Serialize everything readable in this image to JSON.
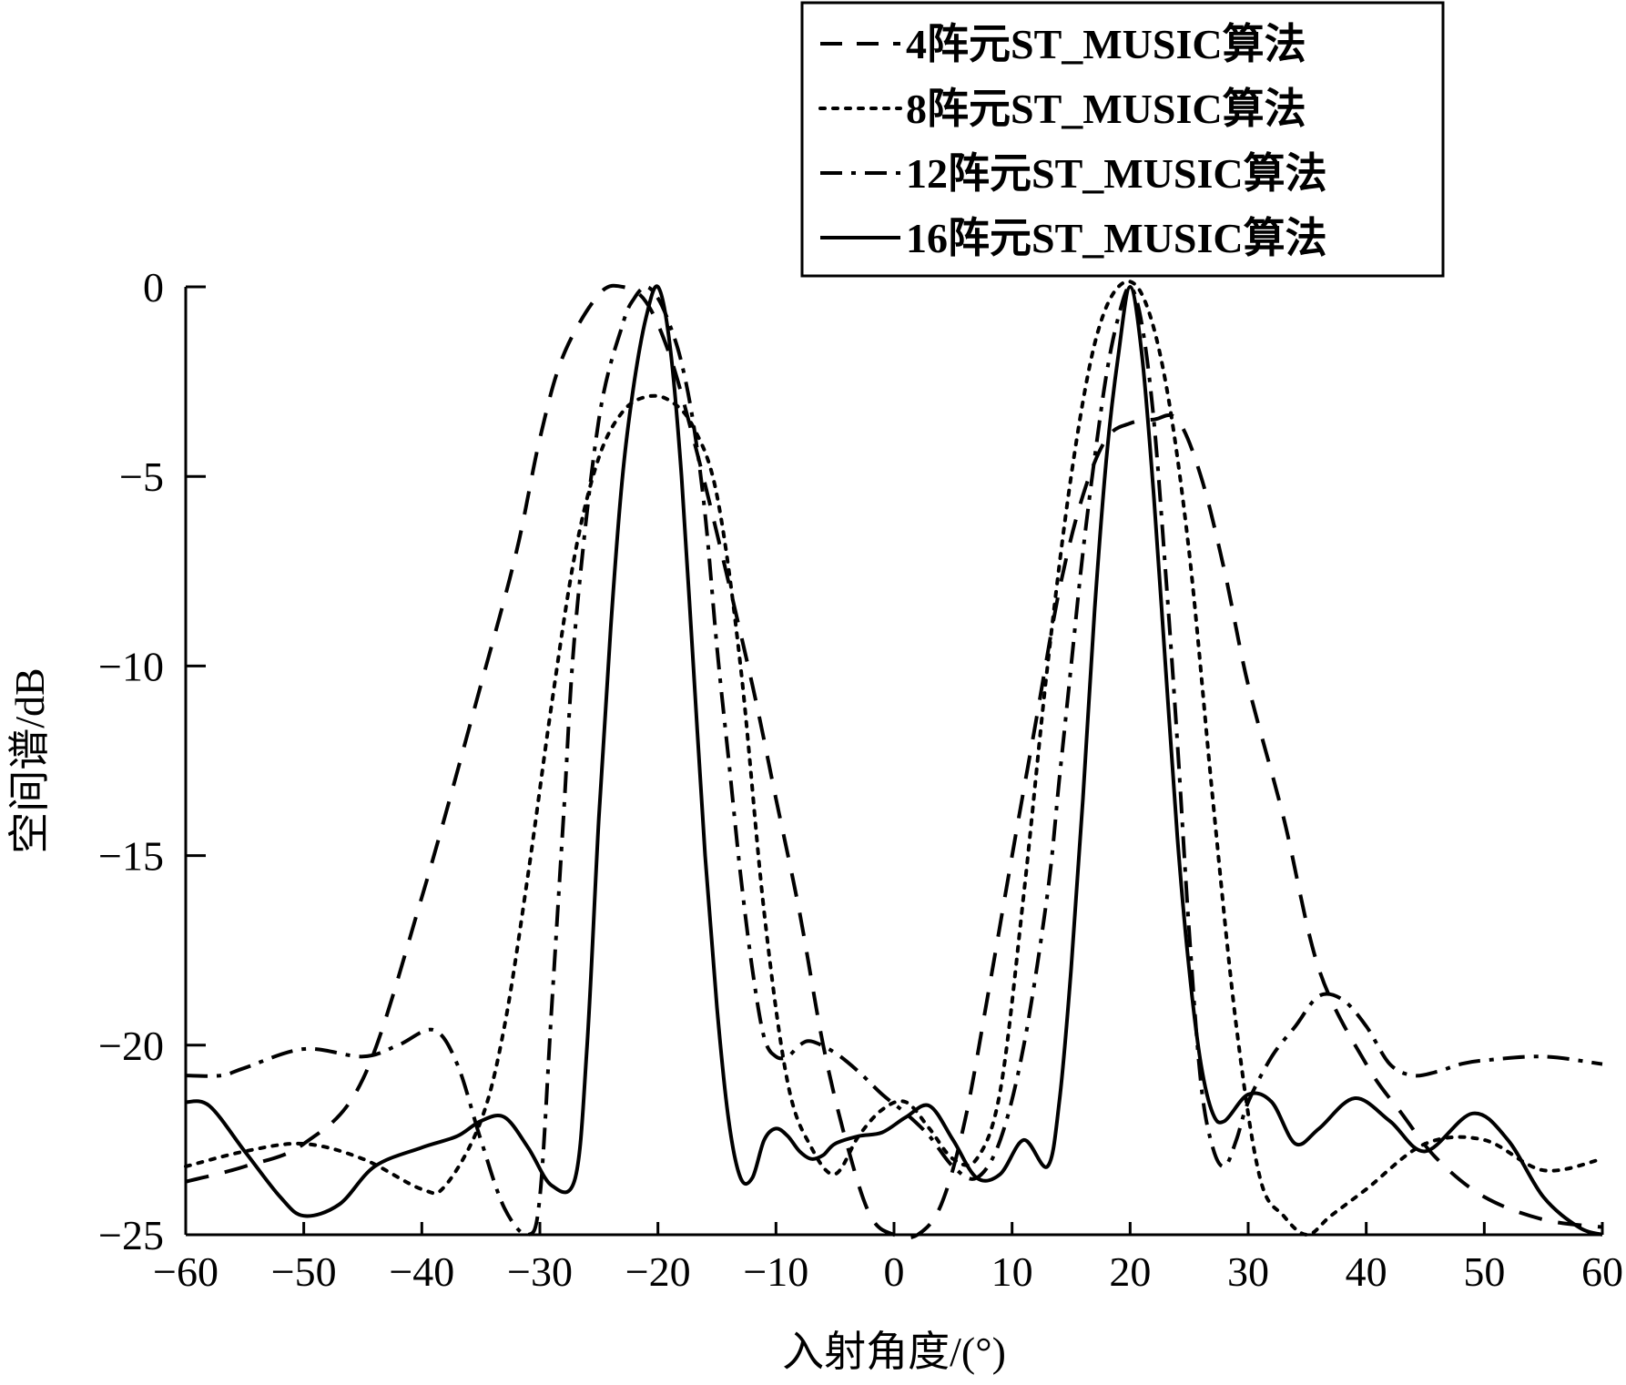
{
  "chart_data": {
    "type": "line",
    "title": "",
    "xlabel": "入射角度/(°)",
    "ylabel": "空间谱/dB",
    "xlim": [
      -60,
      60
    ],
    "ylim": [
      -25,
      0
    ],
    "xticks": [
      -60,
      -50,
      -40,
      -30,
      -20,
      -10,
      0,
      10,
      20,
      30,
      40,
      50,
      60
    ],
    "yticks": [
      0,
      -5,
      -10,
      -15,
      -20,
      -25
    ],
    "xtick_labels": [
      "−60",
      "−50",
      "−40",
      "−30",
      "−20",
      "−10",
      "0",
      "10",
      "20",
      "30",
      "40",
      "50",
      "60"
    ],
    "ytick_labels": [
      "0",
      "−5",
      "−10",
      "−15",
      "−20",
      "−25"
    ],
    "grid": false,
    "legend_position": "top-right",
    "series": [
      {
        "name": "4阵元ST_MUSIC算法",
        "style": "dashed",
        "x": [
          -60,
          -55,
          -50,
          -45,
          -40,
          -35,
          -32,
          -30,
          -28,
          -25,
          -23,
          -21,
          -19,
          -17,
          -15,
          -12,
          -10,
          -8,
          -6,
          -4,
          -2,
          0,
          2,
          4,
          6,
          8,
          10,
          12,
          14,
          16,
          18,
          20,
          22,
          24,
          26,
          28,
          30,
          33,
          36,
          40,
          43,
          46,
          50,
          55,
          60
        ],
        "y": [
          -23.6,
          -23.2,
          -22.6,
          -20.9,
          -16.1,
          -10.5,
          -7.0,
          -4.0,
          -1.8,
          -0.2,
          0.0,
          -0.4,
          -1.8,
          -4.0,
          -6.5,
          -10.5,
          -13.5,
          -16.5,
          -20.0,
          -22.6,
          -24.5,
          -25.3,
          -25.5,
          -24.2,
          -22.0,
          -18.6,
          -15.0,
          -11.5,
          -8.0,
          -5.5,
          -4.0,
          -3.6,
          -3.5,
          -3.5,
          -5.0,
          -7.5,
          -10.5,
          -14.0,
          -18.0,
          -20.5,
          -21.8,
          -23.0,
          -24.0,
          -24.6,
          -24.8
        ]
      },
      {
        "name": "8阵元ST_MUSIC算法",
        "style": "dotted",
        "x": [
          -60,
          -55,
          -50,
          -45,
          -40,
          -38,
          -35,
          -33,
          -31,
          -29,
          -27,
          -25,
          -23,
          -21,
          -19,
          -17,
          -15,
          -13,
          -11,
          -9,
          -7,
          -5,
          -3,
          -1,
          1,
          3,
          5,
          7,
          9,
          11,
          13,
          15,
          17,
          19,
          21,
          23,
          25,
          27,
          29,
          31,
          33,
          35,
          37,
          40,
          45,
          50,
          55,
          60
        ],
        "y": [
          -23.2,
          -22.8,
          -22.6,
          -23.0,
          -23.8,
          -23.7,
          -22.0,
          -19.5,
          -15.5,
          -11.0,
          -7.0,
          -4.5,
          -3.3,
          -2.9,
          -3.0,
          -3.7,
          -5.5,
          -10.0,
          -16.5,
          -21.0,
          -22.7,
          -23.4,
          -22.4,
          -21.7,
          -21.5,
          -22.2,
          -23.0,
          -23.0,
          -21.2,
          -16.0,
          -10.0,
          -5.0,
          -1.5,
          0.0,
          -0.2,
          -2.5,
          -7.0,
          -13.5,
          -19.5,
          -23.5,
          -24.5,
          -25.0,
          -24.5,
          -23.8,
          -22.6,
          -22.5,
          -23.3,
          -23.0
        ]
      },
      {
        "name": "12阵元ST_MUSIC算法",
        "style": "dashdot",
        "x": [
          -60,
          -57,
          -55,
          -50,
          -45,
          -42,
          -39,
          -37,
          -35,
          -33,
          -31,
          -30,
          -29,
          -28,
          -27,
          -25,
          -23,
          -22,
          -21,
          -20,
          -19,
          -18,
          -17,
          -16,
          -15,
          -14,
          -13,
          -12,
          -11,
          -10,
          -9,
          -8,
          -7,
          -5,
          -3,
          -1,
          1,
          3,
          5,
          7,
          9,
          11,
          13,
          14,
          15,
          16,
          17,
          18,
          19,
          20,
          21,
          22,
          23,
          24,
          25,
          26,
          27,
          28,
          29,
          30,
          32,
          34,
          36,
          38,
          40,
          42,
          44,
          46,
          48,
          50,
          55,
          60
        ],
        "y": [
          -20.8,
          -20.8,
          -20.6,
          -20.1,
          -20.3,
          -20.0,
          -19.6,
          -20.5,
          -22.5,
          -24.3,
          -25.0,
          -24.0,
          -19.0,
          -14.0,
          -9.0,
          -3.5,
          -1.0,
          -0.3,
          0.0,
          -0.3,
          -1.0,
          -2.0,
          -3.6,
          -6.0,
          -9.5,
          -12.5,
          -15.5,
          -18.0,
          -19.8,
          -20.3,
          -20.3,
          -20.0,
          -19.9,
          -20.2,
          -20.7,
          -21.3,
          -21.8,
          -22.4,
          -23.2,
          -23.5,
          -22.5,
          -20.0,
          -16.0,
          -13.0,
          -10.0,
          -7.0,
          -4.5,
          -2.3,
          -0.8,
          0.0,
          -1.0,
          -3.5,
          -7.5,
          -12.0,
          -17.0,
          -21.0,
          -22.7,
          -23.2,
          -22.5,
          -21.5,
          -20.3,
          -19.5,
          -18.7,
          -18.8,
          -19.5,
          -20.5,
          -20.8,
          -20.7,
          -20.5,
          -20.4,
          -20.3,
          -20.5
        ]
      },
      {
        "name": "16阵元ST_MUSIC算法",
        "style": "solid",
        "x": [
          -60,
          -58,
          -55,
          -52,
          -50,
          -47,
          -44,
          -40,
          -37,
          -35,
          -33,
          -31,
          -29,
          -27,
          -26,
          -25,
          -24,
          -23,
          -22,
          -21,
          -20,
          -19,
          -18,
          -17,
          -16,
          -15,
          -14,
          -13,
          -12,
          -11,
          -10,
          -9,
          -8,
          -7,
          -6,
          -5,
          -3,
          -1,
          1,
          3,
          5,
          7,
          9,
          11,
          13,
          14,
          15,
          16,
          17,
          18,
          19,
          20,
          21,
          22,
          23,
          24,
          25,
          26,
          27,
          28,
          30,
          32,
          34,
          36,
          39,
          42,
          45,
          49,
          52,
          55,
          58,
          60
        ],
        "y": [
          -21.5,
          -21.6,
          -22.8,
          -24.0,
          -24.5,
          -24.2,
          -23.2,
          -22.7,
          -22.4,
          -22.0,
          -21.9,
          -22.7,
          -23.7,
          -23.5,
          -20.0,
          -14.0,
          -9.0,
          -5.0,
          -2.5,
          -0.8,
          0.0,
          -1.5,
          -5.0,
          -10.0,
          -15.0,
          -19.0,
          -22.0,
          -23.5,
          -23.5,
          -22.5,
          -22.2,
          -22.4,
          -22.8,
          -23.0,
          -22.9,
          -22.6,
          -22.4,
          -22.3,
          -21.9,
          -21.6,
          -22.5,
          -23.5,
          -23.4,
          -22.5,
          -23.2,
          -21.5,
          -18.0,
          -13.5,
          -8.5,
          -4.5,
          -1.8,
          0.0,
          -1.8,
          -5.5,
          -10.0,
          -14.5,
          -18.0,
          -20.5,
          -21.8,
          -22.0,
          -21.3,
          -21.5,
          -22.6,
          -22.2,
          -21.4,
          -22.0,
          -22.8,
          -21.8,
          -22.5,
          -24.0,
          -24.8,
          -25.0
        ]
      }
    ]
  }
}
